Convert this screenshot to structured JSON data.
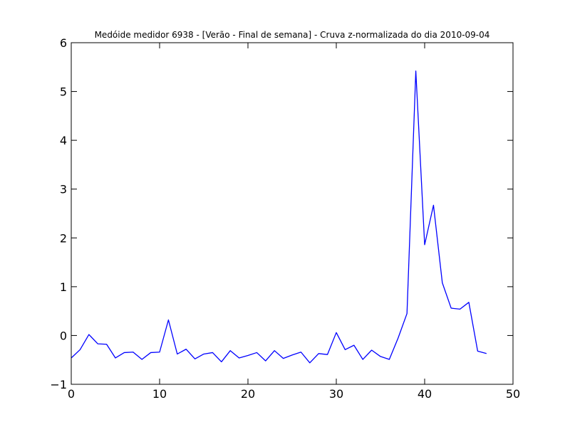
{
  "chart_data": {
    "type": "line",
    "title": "Medóide medidor 6938 - [Verão - Final de semana] - Cruva z-normalizada do dia 2010-09-04",
    "xlabel": "",
    "ylabel": "",
    "xlim": [
      0,
      50
    ],
    "ylim": [
      -1,
      6
    ],
    "x_ticks": [
      0,
      10,
      20,
      30,
      40,
      50
    ],
    "y_ticks": [
      -1,
      0,
      1,
      2,
      3,
      4,
      5,
      6
    ],
    "x_tick_labels": [
      "0",
      "10",
      "20",
      "30",
      "40",
      "50"
    ],
    "y_tick_labels": [
      "−1",
      "0",
      "1",
      "2",
      "3",
      "4",
      "5",
      "6"
    ],
    "grid": false,
    "line_color": "#0000ff",
    "series": [
      {
        "x": [
          0,
          1,
          2,
          3,
          4,
          5,
          6,
          7,
          8,
          9,
          10,
          11,
          12,
          13,
          14,
          15,
          16,
          17,
          18,
          19,
          20,
          21,
          22,
          23,
          24,
          25,
          26,
          27,
          28,
          29,
          30,
          31,
          32,
          33,
          34,
          35,
          36,
          37,
          38,
          39,
          40,
          41,
          42,
          43,
          44,
          45,
          46,
          47
        ],
        "values": [
          -0.46,
          -0.29,
          0.02,
          -0.17,
          -0.18,
          -0.46,
          -0.35,
          -0.34,
          -0.49,
          -0.35,
          -0.34,
          0.32,
          -0.38,
          -0.28,
          -0.48,
          -0.38,
          -0.35,
          -0.54,
          -0.31,
          -0.46,
          -0.41,
          -0.35,
          -0.52,
          -0.31,
          -0.47,
          -0.4,
          -0.34,
          -0.56,
          -0.37,
          -0.39,
          0.06,
          -0.29,
          -0.2,
          -0.49,
          -0.3,
          -0.43,
          -0.49,
          -0.05,
          0.45,
          5.42,
          1.86,
          2.67,
          1.08,
          0.56,
          0.54,
          0.68,
          -0.32,
          -0.37
        ]
      }
    ]
  }
}
